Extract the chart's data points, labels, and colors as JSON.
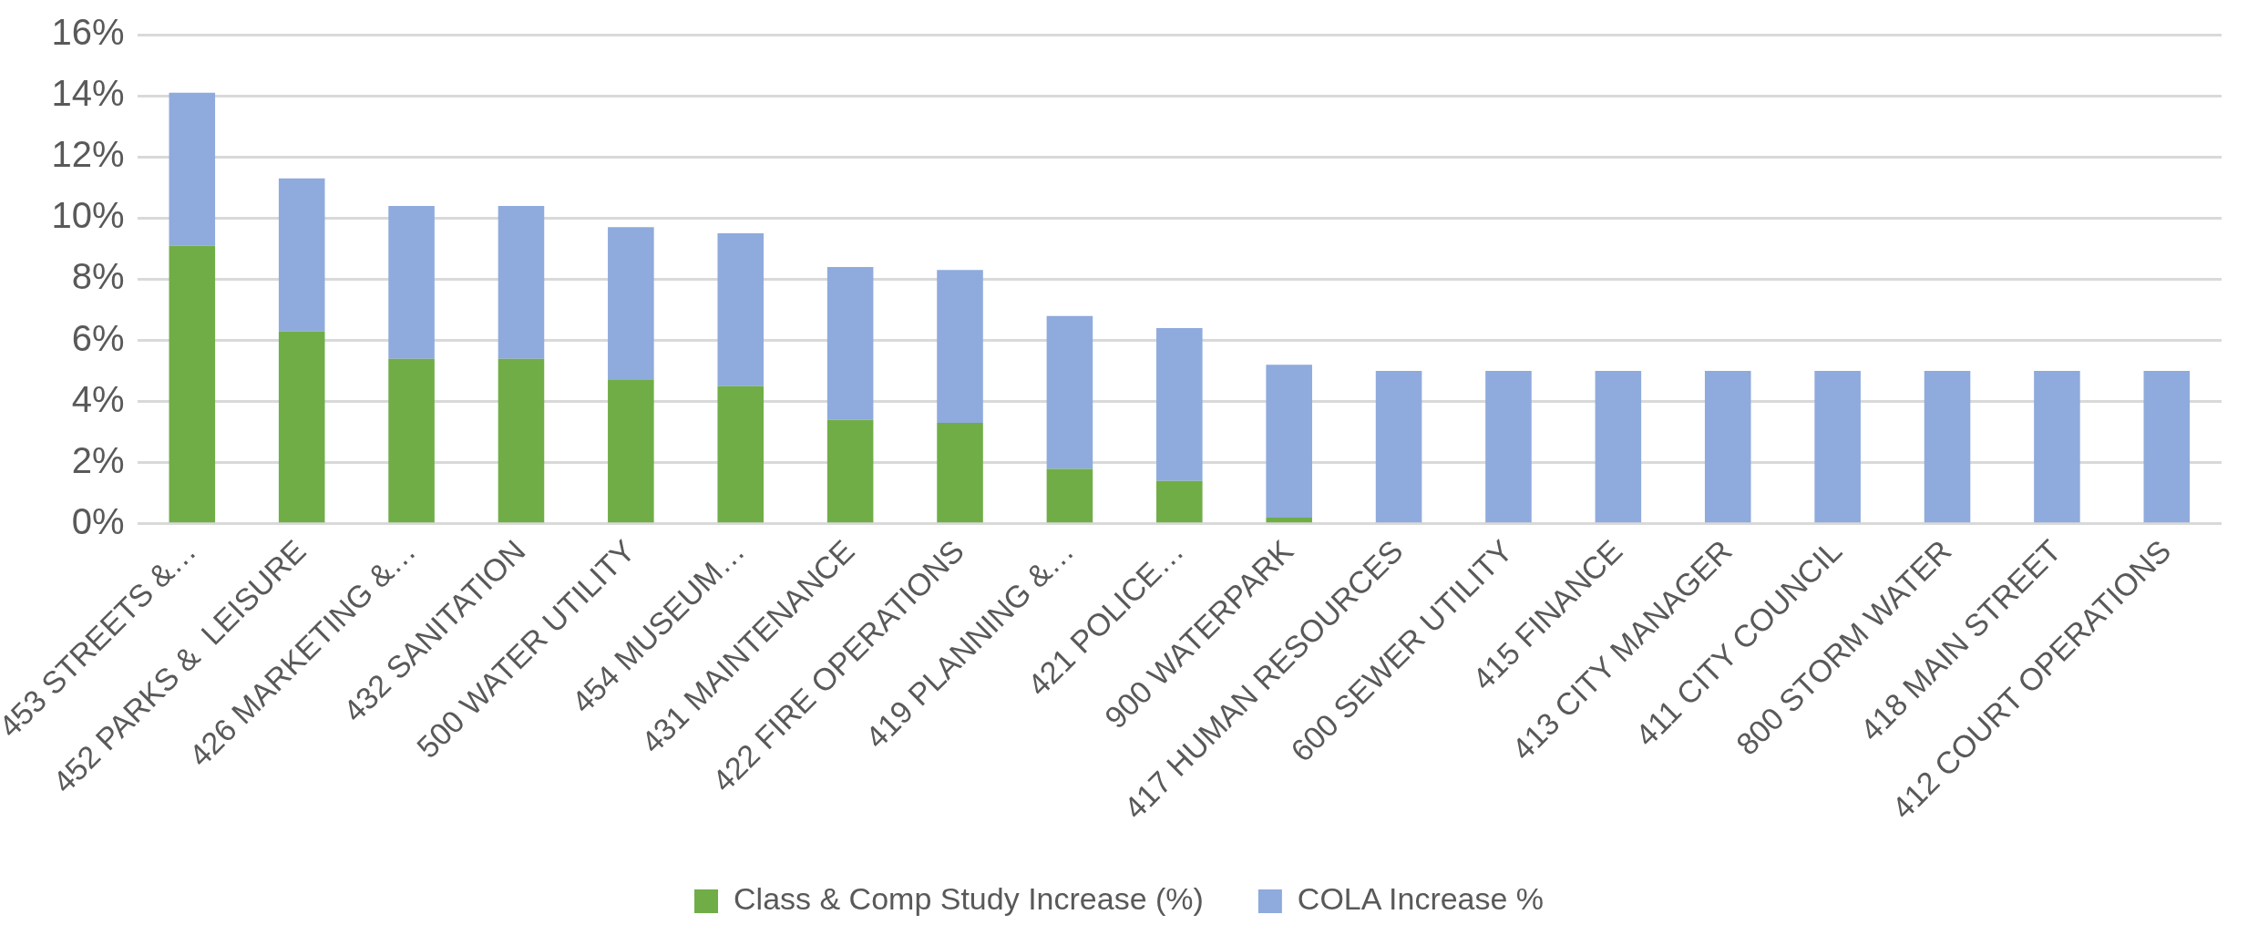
{
  "chart_data": {
    "type": "bar",
    "stacked": true,
    "categories": [
      "453 STREETS &…",
      "452 PARKS &  LEISURE",
      "426 MARKETING &…",
      "432 SANITATION",
      "500 WATER UTILITY",
      "454 MUSEUM…",
      "431 MAINTENANCE",
      "422 FIRE OPERATIONS",
      "419 PLANNING &…",
      "421 POLICE…",
      "900 WATERPARK",
      "417 HUMAN RESOURCES",
      "600 SEWER UTILITY",
      "415 FINANCE",
      "413 CITY MANAGER",
      "411 CITY COUNCIL",
      "800 STORM WATER",
      "418 MAIN STREET",
      "412 COURT OPERATIONS"
    ],
    "series": [
      {
        "name": "Class & Comp Study Increase (%)",
        "color": "#70ad47",
        "values": [
          9.1,
          6.3,
          5.4,
          5.4,
          4.7,
          4.5,
          3.4,
          3.3,
          1.8,
          1.4,
          0.2,
          0,
          0,
          0,
          0,
          0,
          0,
          0,
          0
        ]
      },
      {
        "name": "COLA Increase %",
        "color": "#8faadc",
        "values": [
          5,
          5,
          5,
          5,
          5,
          5,
          5,
          5,
          5,
          5,
          5,
          5,
          5,
          5,
          5,
          5,
          5,
          5,
          5
        ]
      }
    ],
    "ylim": [
      0,
      16
    ],
    "yticks": [
      {
        "value": 0,
        "label": "0%"
      },
      {
        "value": 2,
        "label": "2%"
      },
      {
        "value": 4,
        "label": "4%"
      },
      {
        "value": 6,
        "label": "6%"
      },
      {
        "value": 8,
        "label": "8%"
      },
      {
        "value": 10,
        "label": "10%"
      },
      {
        "value": 12,
        "label": "12%"
      },
      {
        "value": 14,
        "label": "14%"
      },
      {
        "value": 16,
        "label": "16%"
      }
    ],
    "grid": "y",
    "legend": "bottom"
  }
}
